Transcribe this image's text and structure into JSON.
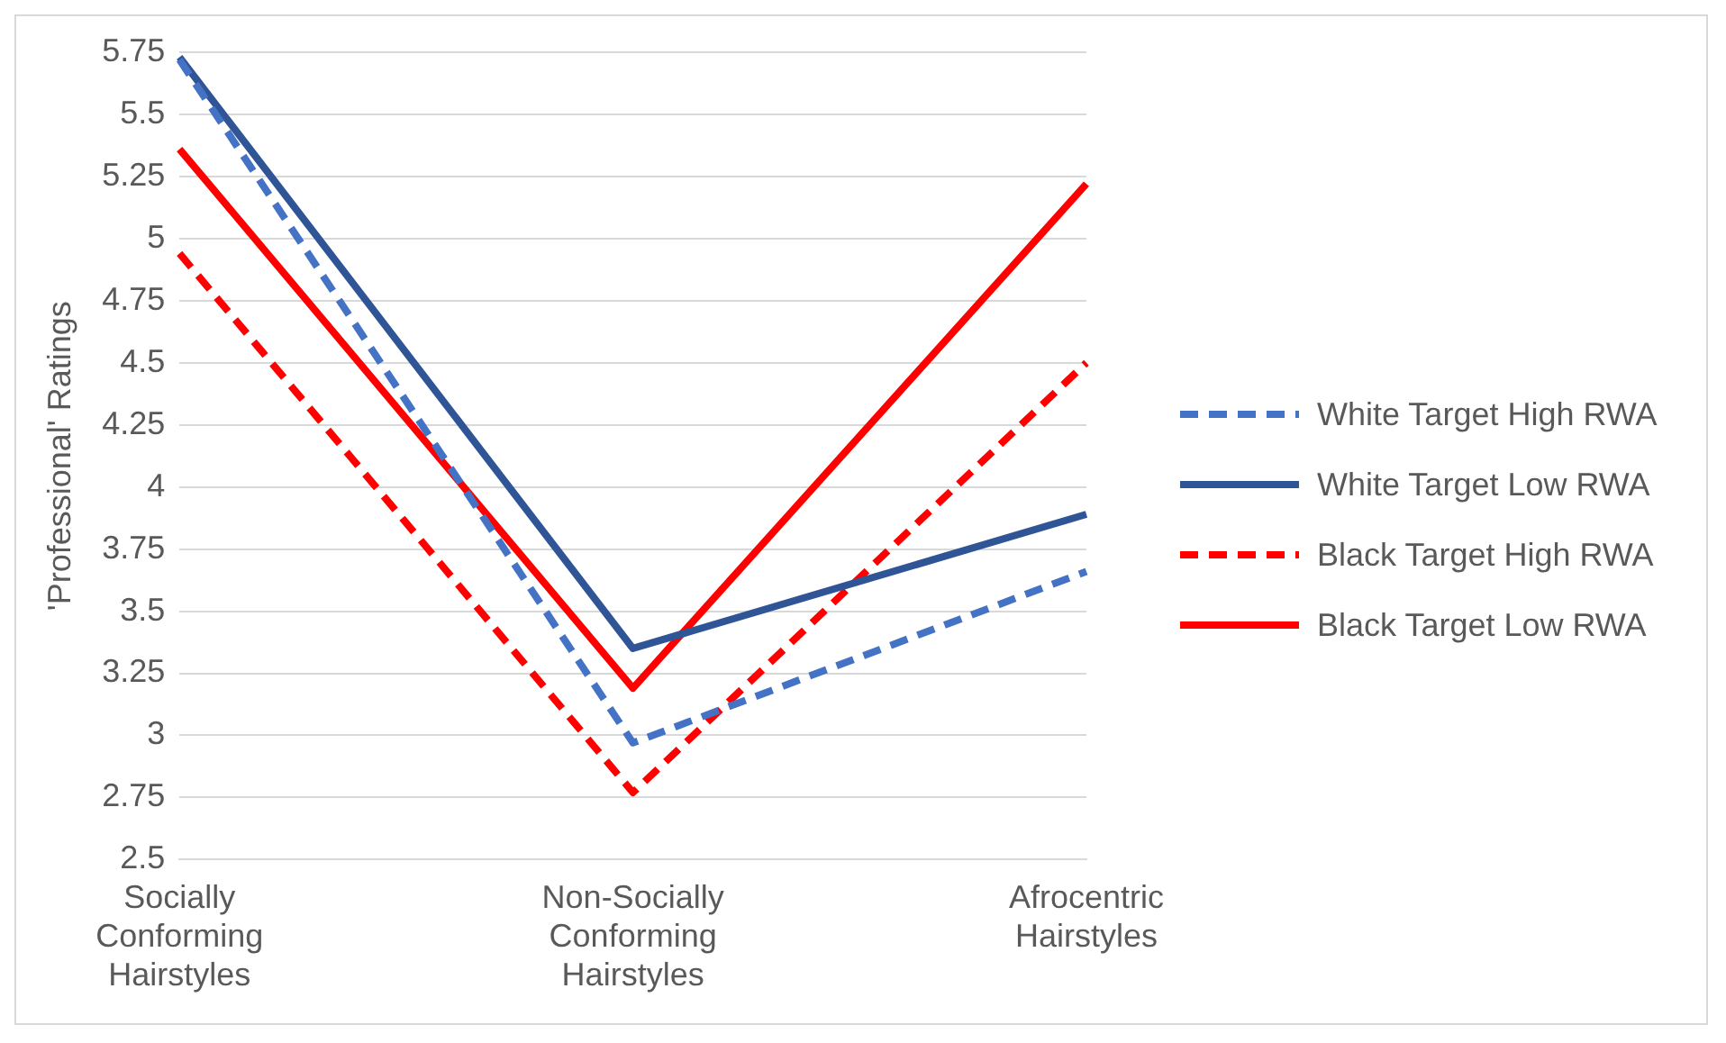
{
  "chart_data": {
    "type": "line",
    "ylabel": "'Professional' Ratings",
    "categories": [
      "Socially Conforming Hairstyles",
      "Non-Socially Conforming Hairstyles",
      "Afrocentric Hairstyles"
    ],
    "series": [
      {
        "name": "White Target High RWA",
        "color": "#4472c4",
        "line_style": "dashed",
        "values": [
          5.72,
          2.97,
          3.66
        ]
      },
      {
        "name": "White Target Low RWA",
        "color": "#2f5597",
        "line_style": "solid",
        "values": [
          5.73,
          3.35,
          3.89
        ]
      },
      {
        "name": "Black Target High RWA",
        "color": "#ff0000",
        "line_style": "dashed",
        "values": [
          4.94,
          2.77,
          4.5
        ]
      },
      {
        "name": "Black Target Low RWA",
        "color": "#ff0000",
        "line_style": "solid",
        "values": [
          5.36,
          3.19,
          5.22
        ]
      }
    ],
    "ylim": [
      2.5,
      5.75
    ],
    "yticks": [
      2.5,
      2.75,
      3,
      3.25,
      3.5,
      3.75,
      4,
      4.25,
      4.5,
      4.75,
      5,
      5.25,
      5.5,
      5.75
    ],
    "grid": "y",
    "legend": "right",
    "marker": "none"
  }
}
